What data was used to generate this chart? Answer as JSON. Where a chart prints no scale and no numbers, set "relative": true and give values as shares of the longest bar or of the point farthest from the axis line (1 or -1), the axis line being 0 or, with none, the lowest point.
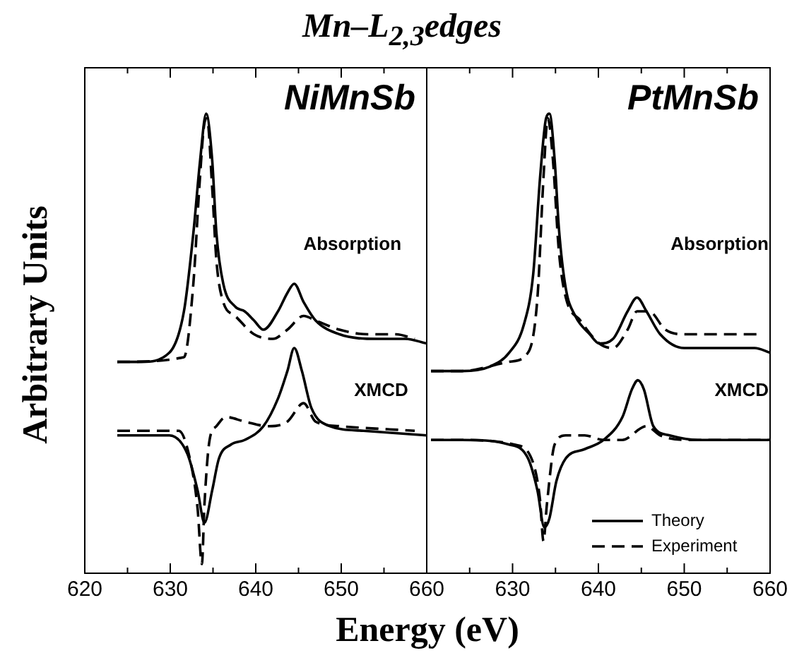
{
  "chart_data": [
    {
      "type": "line",
      "title": "Mn–L$_{2,3}$edges",
      "ylabel": "Arbitrary Units",
      "xlabel": "Energy (eV)",
      "subtitle": "NiMnSb",
      "relative": true,
      "marker": "none",
      "legend": false,
      "tick_labels": "x",
      "xlim": [
        620,
        660
      ],
      "xticks": [
        620,
        {
          "value": 625,
          "label": null
        },
        630,
        {
          "value": 635,
          "label": null
        },
        640,
        {
          "value": 645,
          "label": null
        },
        650,
        {
          "value": 655,
          "label": null
        },
        660
      ],
      "annotations": [
        "Absorption",
        "XMCD"
      ],
      "series": [
        {
          "color": "#000000",
          "line_style": "solid",
          "x": [
            623.8,
            626.6,
            629.9,
            631.6,
            632.7,
            633.5,
            634.2,
            634.9,
            635.4,
            636.2,
            637.6,
            638.7,
            639.8,
            640.9,
            642.6,
            643.7,
            644.5,
            645.6,
            647.0,
            649.8,
            654.2,
            657.5,
            660
          ],
          "values": [
            0.46,
            0.46,
            0.48,
            0.57,
            0.74,
            0.9,
            1,
            0.9,
            0.74,
            0.63,
            0.58,
            0.57,
            0.55,
            0.53,
            0.57,
            0.61,
            0.63,
            0.59,
            0.55,
            0.52,
            0.51,
            0.51,
            0.5
          ]
        },
        {
          "color": "#000000",
          "line_style": "dashed",
          "x": [
            623.8,
            631.6,
            632.7,
            633.4,
            634.0,
            634.3,
            634.9,
            635.4,
            636.2,
            637.6,
            639.8,
            642.0,
            643.7,
            645.6,
            647.0,
            649.8,
            653.1,
            656.4,
            658.6
          ],
          "values": [
            0.46,
            0.47,
            0.63,
            0.84,
            0.98,
            0.99,
            0.84,
            0.68,
            0.59,
            0.56,
            0.52,
            0.51,
            0.53,
            0.56,
            0.55,
            0.53,
            0.52,
            0.52,
            0.51
          ]
        },
        {
          "color": "#000000",
          "line_style": "solid",
          "x": [
            623.8,
            629.9,
            632.0,
            633.2,
            634.0,
            634.9,
            635.7,
            637.1,
            638.7,
            640.9,
            642.6,
            643.7,
            644.5,
            645.4,
            646.5,
            648.7,
            652.6,
            660
          ],
          "values": [
            0.3,
            0.3,
            0.26,
            0.18,
            0.11,
            0.18,
            0.25,
            0.28,
            0.29,
            0.32,
            0.38,
            0.44,
            0.49,
            0.44,
            0.36,
            0.32,
            0.31,
            0.3
          ]
        },
        {
          "color": "#000000",
          "line_style": "dashed",
          "x": [
            623.8,
            631.0,
            632.4,
            633.2,
            633.7,
            634.0,
            634.6,
            635.4,
            636.5,
            638.7,
            641.5,
            643.7,
            645.6,
            647.0,
            649.8,
            658.6
          ],
          "values": [
            0.31,
            0.31,
            0.24,
            0.14,
            0.02,
            0.15,
            0.29,
            0.32,
            0.34,
            0.33,
            0.32,
            0.33,
            0.37,
            0.33,
            0.32,
            0.31
          ]
        }
      ]
    },
    {
      "type": "line",
      "subtitle": "PtMnSb",
      "relative": true,
      "marker": "none",
      "legend": "bottom right",
      "tick_labels": "x",
      "xlim": [
        620,
        660
      ],
      "xticks": [
        {
          "value": 620,
          "label": null
        },
        {
          "value": 625,
          "label": null
        },
        630,
        {
          "value": 635,
          "label": null
        },
        640,
        {
          "value": 645,
          "label": null
        },
        650,
        {
          "value": 655,
          "label": null
        },
        660
      ],
      "annotations": [
        "Absorption",
        "XMCD"
      ],
      "series": [
        {
          "name": "Theory",
          "color": "#000000",
          "line_style": "solid",
          "x": [
            620.5,
            624.1,
            627.4,
            629.6,
            631.3,
            632.4,
            633.2,
            633.9,
            634.3,
            634.9,
            635.4,
            636.2,
            637.3,
            639.0,
            640.1,
            641.7,
            643.4,
            644.5,
            645.6,
            647.2,
            650.0,
            652.7,
            655.5,
            658.2,
            660
          ],
          "values": [
            0.44,
            0.44,
            0.45,
            0.48,
            0.54,
            0.65,
            0.86,
            0.99,
            1,
            0.9,
            0.75,
            0.62,
            0.56,
            0.52,
            0.5,
            0.51,
            0.57,
            0.6,
            0.57,
            0.52,
            0.49,
            0.49,
            0.49,
            0.49,
            0.48
          ]
        },
        {
          "name": "Experiment",
          "color": "#000000",
          "line_style": "dashed",
          "x": [
            620.5,
            624.1,
            629.6,
            631.8,
            632.9,
            633.6,
            634.1,
            634.7,
            635.4,
            636.2,
            637.9,
            640.1,
            641.7,
            643.4,
            644.5,
            645.9,
            647.8,
            650.0,
            654.4,
            658.8
          ],
          "values": [
            0.44,
            0.44,
            0.46,
            0.48,
            0.6,
            0.86,
            0.99,
            0.9,
            0.7,
            0.6,
            0.55,
            0.5,
            0.49,
            0.53,
            0.57,
            0.57,
            0.53,
            0.52,
            0.52,
            0.52
          ]
        },
        {
          "color": "#000000",
          "line_style": "solid",
          "x": [
            620.5,
            624.1,
            629.6,
            631.8,
            632.9,
            633.7,
            634.3,
            635.1,
            636.2,
            638.4,
            640.6,
            642.8,
            643.9,
            644.6,
            645.3,
            646.4,
            648.3,
            651.6,
            660
          ],
          "values": [
            0.29,
            0.29,
            0.28,
            0.25,
            0.18,
            0.1,
            0.12,
            0.2,
            0.25,
            0.27,
            0.29,
            0.34,
            0.4,
            0.42,
            0.4,
            0.32,
            0.3,
            0.29,
            0.29
          ]
        },
        {
          "color": "#000000",
          "line_style": "dashed",
          "x": [
            620.5,
            624.1,
            630.2,
            632.4,
            633.2,
            633.6,
            634.0,
            634.9,
            636.2,
            638.4,
            640.6,
            642.8,
            643.9,
            644.5,
            645.6,
            647.2,
            650.5,
            659.9
          ],
          "values": [
            0.29,
            0.29,
            0.28,
            0.24,
            0.16,
            0.07,
            0.15,
            0.28,
            0.3,
            0.3,
            0.29,
            0.29,
            0.3,
            0.31,
            0.32,
            0.3,
            0.29,
            0.29
          ]
        }
      ]
    }
  ]
}
